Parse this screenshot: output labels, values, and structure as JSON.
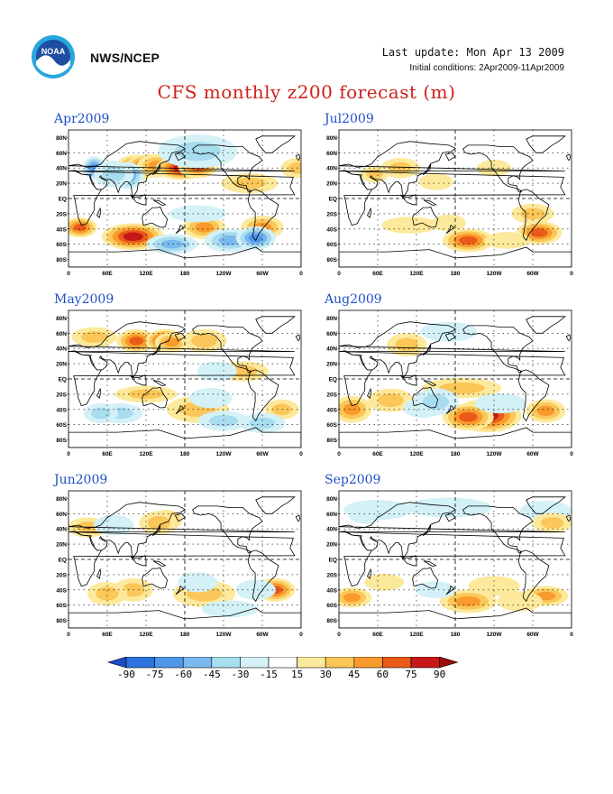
{
  "header": {
    "org": "NWS/NCEP",
    "last_update": "Last update: Mon Apr 13 2009",
    "initial_conditions": "Initial conditions: 2Apr2009-11Apr2009",
    "title": "CFS monthly z200 forecast (m)",
    "logo_text": "NOAA"
  },
  "map_axes": {
    "lat_labels": [
      "80N",
      "60N",
      "40N",
      "20N",
      "EQ",
      "20S",
      "40S",
      "60S",
      "80S"
    ],
    "lon_labels": [
      "0",
      "60E",
      "120E",
      "180",
      "120W",
      "60W",
      "0"
    ]
  },
  "panels": [
    {
      "label": "Apr2009",
      "blobs": [
        [
          103,
          40,
          14,
          8,
          60
        ],
        [
          125,
          43,
          16,
          7,
          75
        ],
        [
          137,
          43,
          14,
          7,
          45
        ],
        [
          175,
          40,
          18,
          7,
          75
        ],
        [
          200,
          42,
          14,
          7,
          60
        ],
        [
          90,
          30,
          12,
          8,
          -60
        ],
        [
          40,
          40,
          8,
          7,
          -60
        ],
        [
          70,
          32,
          14,
          8,
          -30
        ],
        [
          -5,
          40,
          12,
          6,
          30
        ],
        [
          18,
          -38,
          12,
          6,
          60
        ],
        [
          100,
          -50,
          22,
          8,
          75
        ],
        [
          210,
          -38,
          15,
          7,
          45
        ],
        [
          300,
          -38,
          15,
          7,
          45
        ],
        [
          160,
          -60,
          18,
          6,
          -45
        ],
        [
          250,
          -55,
          18,
          7,
          -45
        ],
        [
          290,
          -52,
          14,
          7,
          -60
        ],
        [
          200,
          62,
          28,
          10,
          -30
        ],
        [
          280,
          20,
          20,
          6,
          30
        ],
        [
          200,
          -20,
          20,
          5,
          -15
        ]
      ]
    },
    {
      "label": "Jul2009",
      "blobs": [
        [
          95,
          40,
          14,
          6,
          30
        ],
        [
          55,
          32,
          10,
          5,
          30
        ],
        [
          150,
          22,
          12,
          5,
          15
        ],
        [
          240,
          40,
          12,
          5,
          15
        ],
        [
          300,
          -20,
          15,
          6,
          30
        ],
        [
          200,
          -55,
          18,
          7,
          60
        ],
        [
          310,
          -45,
          16,
          7,
          60
        ],
        [
          170,
          -32,
          12,
          5,
          15
        ],
        [
          110,
          -35,
          20,
          5,
          15
        ],
        [
          260,
          -55,
          16,
          5,
          15
        ]
      ]
    },
    {
      "label": "May2009",
      "blobs": [
        [
          105,
          50,
          14,
          7,
          60
        ],
        [
          150,
          50,
          14,
          7,
          75
        ],
        [
          160,
          48,
          12,
          6,
          45
        ],
        [
          210,
          50,
          16,
          7,
          30
        ],
        [
          40,
          55,
          16,
          6,
          30
        ],
        [
          270,
          10,
          18,
          6,
          30
        ],
        [
          120,
          -20,
          22,
          5,
          30
        ],
        [
          330,
          -40,
          12,
          6,
          30
        ],
        [
          200,
          -40,
          22,
          8,
          30
        ],
        [
          80,
          -45,
          16,
          6,
          -30
        ],
        [
          50,
          -45,
          12,
          6,
          -30
        ],
        [
          220,
          -25,
          15,
          6,
          -15
        ],
        [
          230,
          10,
          14,
          6,
          -15
        ],
        [
          240,
          -55,
          18,
          6,
          -30
        ],
        [
          300,
          -58,
          16,
          6,
          -30
        ]
      ]
    },
    {
      "label": "Aug2009",
      "blobs": [
        [
          105,
          45,
          14,
          7,
          30
        ],
        [
          190,
          -12,
          28,
          6,
          30
        ],
        [
          230,
          -48,
          24,
          10,
          75
        ],
        [
          200,
          -50,
          18,
          8,
          60
        ],
        [
          320,
          -42,
          14,
          7,
          45
        ],
        [
          20,
          -40,
          14,
          8,
          45
        ],
        [
          80,
          -28,
          16,
          7,
          30
        ],
        [
          130,
          -38,
          14,
          6,
          -15
        ],
        [
          150,
          -30,
          16,
          8,
          -30
        ],
        [
          250,
          -32,
          18,
          6,
          -15
        ],
        [
          170,
          62,
          20,
          6,
          -15
        ]
      ]
    },
    {
      "label": "Jun2009",
      "blobs": [
        [
          30,
          42,
          14,
          6,
          30
        ],
        [
          150,
          52,
          12,
          6,
          60
        ],
        [
          140,
          48,
          14,
          7,
          30
        ],
        [
          70,
          45,
          14,
          6,
          -15
        ],
        [
          100,
          -40,
          14,
          7,
          30
        ],
        [
          60,
          -45,
          14,
          7,
          30
        ],
        [
          210,
          -45,
          22,
          8,
          30
        ],
        [
          320,
          -40,
          14,
          7,
          60
        ],
        [
          200,
          -30,
          14,
          6,
          -15
        ],
        [
          290,
          -40,
          14,
          6,
          -15
        ],
        [
          250,
          -65,
          20,
          5,
          -15
        ]
      ]
    },
    {
      "label": "Sep2009",
      "blobs": [
        [
          60,
          65,
          24,
          6,
          -15
        ],
        [
          170,
          68,
          30,
          6,
          -15
        ],
        [
          320,
          64,
          18,
          6,
          -15
        ],
        [
          330,
          48,
          14,
          6,
          30
        ],
        [
          40,
          60,
          12,
          6,
          -15
        ],
        [
          20,
          -50,
          14,
          6,
          45
        ],
        [
          70,
          -30,
          14,
          5,
          15
        ],
        [
          200,
          -55,
          20,
          7,
          45
        ],
        [
          240,
          -35,
          18,
          6,
          15
        ],
        [
          320,
          -48,
          16,
          6,
          45
        ],
        [
          150,
          -40,
          14,
          5,
          -15
        ],
        [
          280,
          -55,
          16,
          6,
          15
        ]
      ]
    }
  ],
  "colorbar": {
    "labels": [
      "-90",
      "-75",
      "-60",
      "-45",
      "-30",
      "-15",
      "15",
      "30",
      "45",
      "60",
      "75",
      "90"
    ],
    "colors": [
      "#1c4fc6",
      "#2b73df",
      "#4f98e9",
      "#7ab9ee",
      "#a8dcef",
      "#d3f1f6",
      "#ffffff",
      "#fde99b",
      "#fbc759",
      "#f89a2c",
      "#ea5a19",
      "#c71717",
      "#9c0c0c"
    ]
  }
}
